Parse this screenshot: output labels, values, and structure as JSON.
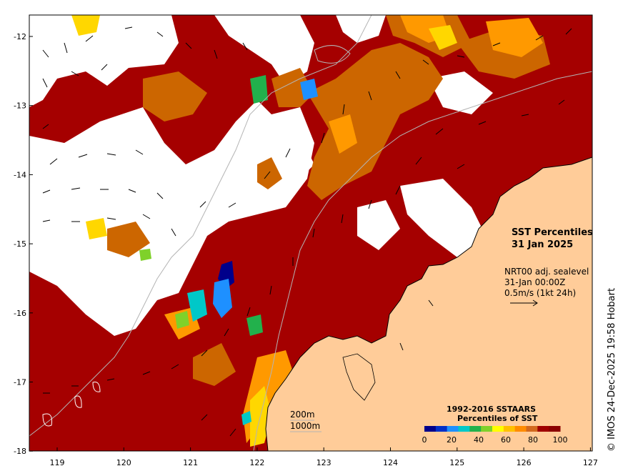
{
  "map": {
    "title_line1": "SST Percentiles",
    "title_line2": "31 Jan 2025",
    "current_product": "NRT00 adj. sealevel",
    "current_time": "31-Jan 00:00Z",
    "current_scale": "0.5m/s (1kt 24h)",
    "contour_200": "200m",
    "contour_1000": "1000m",
    "legend_title1": "1992-2016 SSTAARS",
    "legend_title2": "Percentiles of SST",
    "credit": "© IMOS 24-Dec-2025 19:58 Hobart",
    "lon_ticks": [
      "119",
      "120",
      "121",
      "122",
      "123",
      "124",
      "125",
      "126",
      "127"
    ],
    "lat_ticks": [
      "-12",
      "-13",
      "-14",
      "-15",
      "-16",
      "-17",
      "-18"
    ],
    "legend_ticks": [
      "0",
      "20",
      "40",
      "60",
      "80",
      "100"
    ],
    "legend_colors": [
      "#00008b",
      "#0030c8",
      "#1e90ff",
      "#00c8c8",
      "#22b14c",
      "#7fd12a",
      "#ffff00",
      "#ffc000",
      "#ff8c00",
      "#d2691e",
      "#a00000",
      "#8b0000"
    ],
    "colors": {
      "land": "#ffcc99",
      "very_high": "#a50000",
      "high": "#cc6600",
      "warm": "#ff9900",
      "mid": "#ffd700",
      "ocean_gap": "#ffffff"
    }
  }
}
